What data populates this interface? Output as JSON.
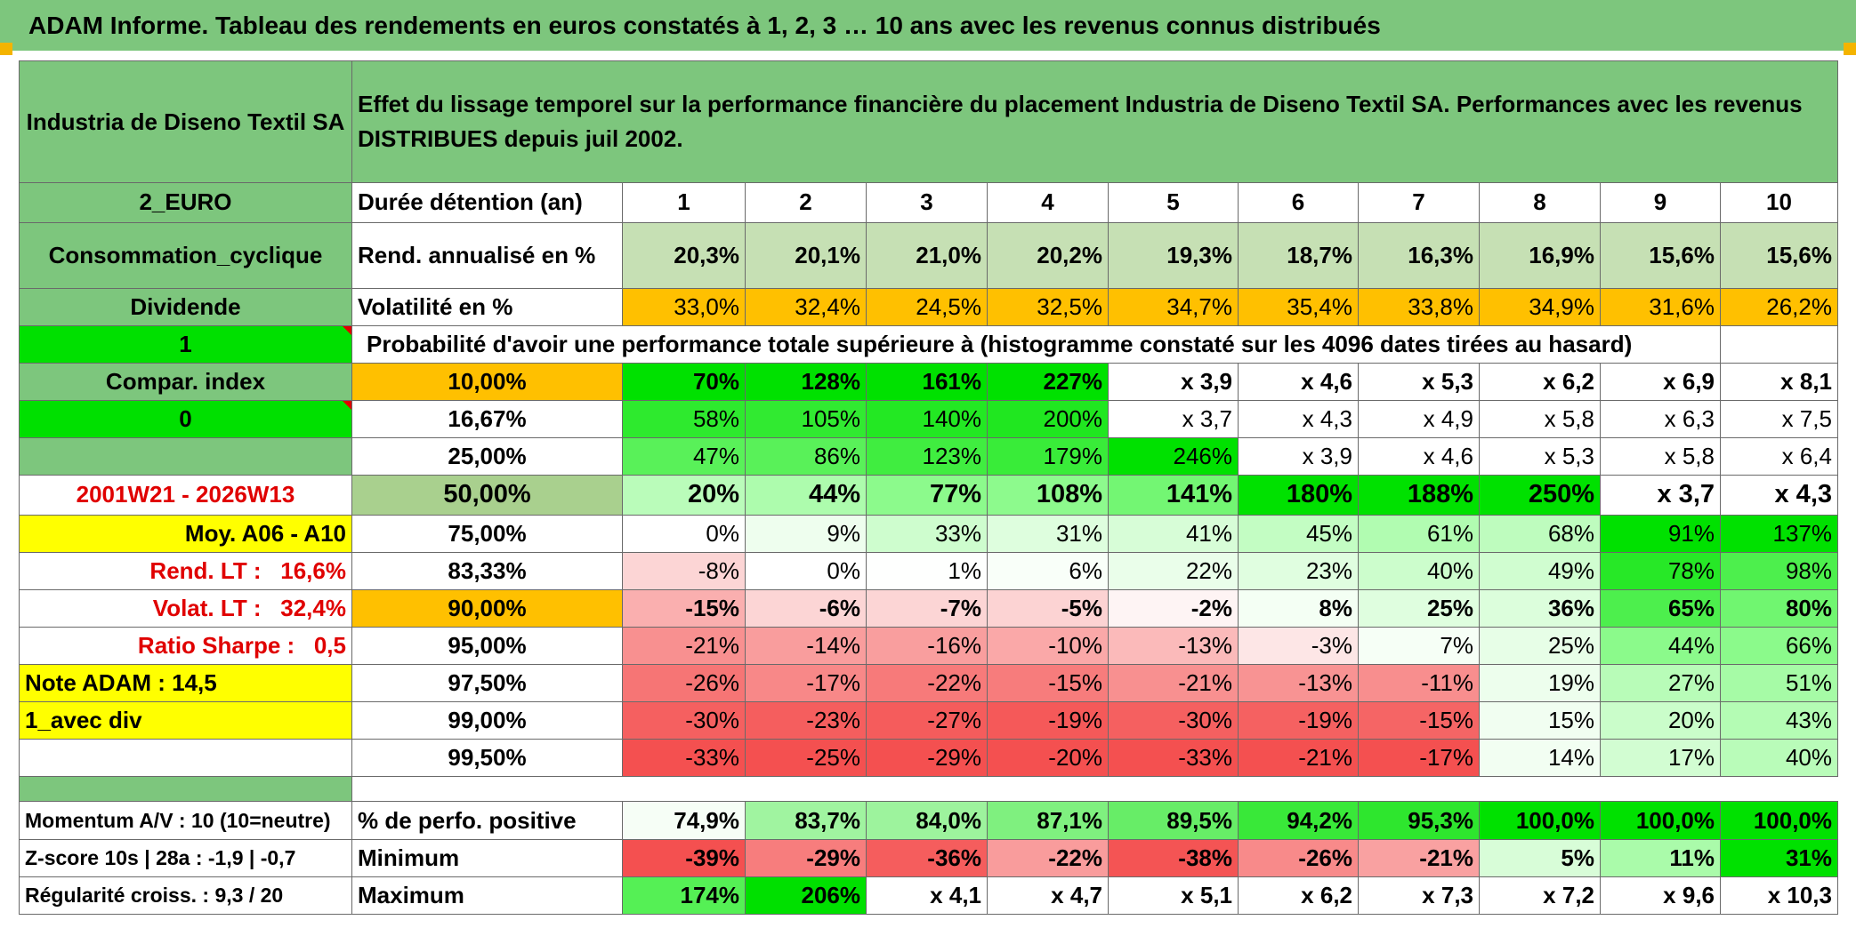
{
  "title": "ADAM Informe. Tableau des rendements en euros constatés à 1, 2, 3 … 10 ans avec les revenus connus distribués",
  "colors": {
    "green_header": "#7dc67d",
    "bright_green": "#00e000",
    "yellow": "#ffff00",
    "orange": "#ffc000",
    "red_text": "#e00000"
  },
  "header": {
    "asset_name": "Industria de Diseno Textil SA",
    "description": "Effet du lissage temporel sur la performance financière du placement Industria de Diseno Textil SA. Performances avec les revenus DISTRIBUES depuis juil 2002."
  },
  "durations_label": "Durée détention (an)",
  "durations": [
    "1",
    "2",
    "3",
    "4",
    "5",
    "6",
    "7",
    "8",
    "9",
    "10"
  ],
  "left": {
    "currency": "2_EURO",
    "sector": "Consommation_cyclique",
    "dividend_label": "Dividende",
    "dividend_value": "1",
    "compar_label": "Compar. index",
    "compar_value": "0",
    "period": "2001W21 - 2026W13",
    "moy": "Moy. A06 - A10",
    "rend_lt_label": "Rend. LT :",
    "rend_lt_value": "16,6%",
    "volat_lt_label": "Volat. LT :",
    "volat_lt_value": "32,4%",
    "sharpe_label": "Ratio Sharpe :",
    "sharpe_value": "0,5",
    "note": "Note ADAM : 14,5",
    "mode": "1_avec div"
  },
  "rend_row": {
    "label": "Rend. annualisé en %",
    "values": [
      "20,3%",
      "20,1%",
      "21,0%",
      "20,2%",
      "19,3%",
      "18,7%",
      "16,3%",
      "16,9%",
      "15,6%",
      "15,6%"
    ]
  },
  "vol_row": {
    "label": "Volatilité en %",
    "values": [
      "33,0%",
      "32,4%",
      "24,5%",
      "32,5%",
      "34,7%",
      "35,4%",
      "33,8%",
      "34,9%",
      "31,6%",
      "26,2%"
    ]
  },
  "prob_title": "Probabilité d'avoir une performance totale supérieure à (histogramme constaté sur les 4096 dates tirées au hasard)",
  "prob_rows": [
    {
      "p": "10,00%",
      "values": [
        "70%",
        "128%",
        "161%",
        "227%",
        "x 3,9",
        "x 4,6",
        "x 5,3",
        "x 6,2",
        "x 6,9",
        "x 8,1"
      ]
    },
    {
      "p": "16,67%",
      "values": [
        "58%",
        "105%",
        "140%",
        "200%",
        "x 3,7",
        "x 4,3",
        "x 4,9",
        "x 5,8",
        "x 6,3",
        "x 7,5"
      ]
    },
    {
      "p": "25,00%",
      "values": [
        "47%",
        "86%",
        "123%",
        "179%",
        "246%",
        "x 3,9",
        "x 4,6",
        "x 5,3",
        "x 5,8",
        "x 6,4"
      ]
    },
    {
      "p": "50,00%",
      "values": [
        "20%",
        "44%",
        "77%",
        "108%",
        "141%",
        "180%",
        "188%",
        "250%",
        "x 3,7",
        "x 4,3"
      ]
    },
    {
      "p": "75,00%",
      "values": [
        "0%",
        "9%",
        "33%",
        "31%",
        "41%",
        "45%",
        "61%",
        "68%",
        "91%",
        "137%"
      ]
    },
    {
      "p": "83,33%",
      "values": [
        "-8%",
        "0%",
        "1%",
        "6%",
        "22%",
        "23%",
        "40%",
        "49%",
        "78%",
        "98%"
      ]
    },
    {
      "p": "90,00%",
      "values": [
        "-15%",
        "-6%",
        "-7%",
        "-5%",
        "-2%",
        "8%",
        "25%",
        "36%",
        "65%",
        "80%"
      ]
    },
    {
      "p": "95,00%",
      "values": [
        "-21%",
        "-14%",
        "-16%",
        "-10%",
        "-13%",
        "-3%",
        "7%",
        "25%",
        "44%",
        "66%"
      ]
    },
    {
      "p": "97,50%",
      "values": [
        "-26%",
        "-17%",
        "-22%",
        "-15%",
        "-21%",
        "-13%",
        "-11%",
        "19%",
        "27%",
        "51%"
      ]
    },
    {
      "p": "99,00%",
      "values": [
        "-30%",
        "-23%",
        "-27%",
        "-19%",
        "-30%",
        "-19%",
        "-15%",
        "15%",
        "20%",
        "43%"
      ]
    },
    {
      "p": "99,50%",
      "values": [
        "-33%",
        "-25%",
        "-29%",
        "-20%",
        "-33%",
        "-21%",
        "-17%",
        "14%",
        "17%",
        "40%"
      ]
    }
  ],
  "bottom": {
    "momentum": "Momentum A/V : 10 (10=neutre)",
    "zscore": "Z-score 10s | 28a : -1,9 | -0,7",
    "regularite": "Régularité croiss. : 9,3 / 20",
    "pos_label": "% de perfo. positive",
    "pos_values": [
      "74,9%",
      "83,7%",
      "84,0%",
      "87,1%",
      "89,5%",
      "94,2%",
      "95,3%",
      "100,0%",
      "100,0%",
      "100,0%"
    ],
    "min_label": "Minimum",
    "min_values": [
      "-39%",
      "-29%",
      "-36%",
      "-22%",
      "-38%",
      "-26%",
      "-21%",
      "5%",
      "11%",
      "31%"
    ],
    "max_label": "Maximum",
    "max_values": [
      "174%",
      "206%",
      "x 4,1",
      "x 4,7",
      "x 5,1",
      "x 6,2",
      "x 7,3",
      "x 7,2",
      "x 9,6",
      "x 10,3"
    ]
  }
}
